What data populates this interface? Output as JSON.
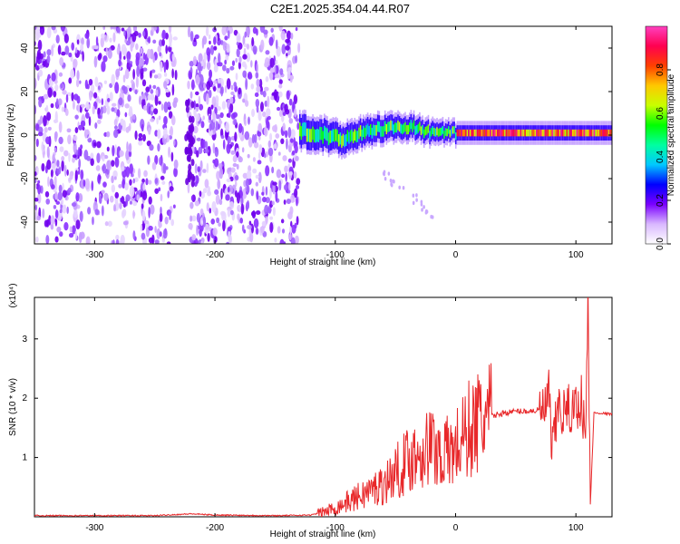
{
  "title": "C2E1.2025.354.04.44.R07",
  "chart_data": [
    {
      "type": "heatmap",
      "xlabel": "Height of straight line (km)",
      "ylabel": "Frequency (Hz)",
      "xlim": [
        -350,
        130
      ],
      "ylim": [
        -50,
        50
      ],
      "xticks": [
        -300,
        -200,
        -100,
        0,
        100
      ],
      "yticks": [
        -40,
        -20,
        0,
        20,
        40
      ],
      "colorbar": {
        "label": "Normalized spectral amplitude",
        "range": [
          0.0,
          1.0
        ],
        "ticks": [
          "0.0",
          "0.2",
          "0.4",
          "0.6",
          "0.8"
        ],
        "colormap": [
          "#ffffff",
          "#d9b8ff",
          "#7a00ff",
          "#0000ff",
          "#00c8ff",
          "#00ffa0",
          "#00ff00",
          "#c8ff00",
          "#ffc800",
          "#ff4000",
          "#ff0050",
          "#ff40c0"
        ]
      },
      "features": {
        "noise_band_x": [
          -350,
          -130
        ],
        "gap_x": [
          -232,
          -222
        ],
        "signal_start_x": -130,
        "ridge": [
          {
            "x": -130,
            "f": 2
          },
          {
            "x": -110,
            "f": 0
          },
          {
            "x": -95,
            "f": -2
          },
          {
            "x": -80,
            "f": 1
          },
          {
            "x": -60,
            "f": 3
          },
          {
            "x": -40,
            "f": 4
          },
          {
            "x": -20,
            "f": 1
          },
          {
            "x": 0,
            "f": 1
          },
          {
            "x": 20,
            "f": 1
          },
          {
            "x": 60,
            "f": 1
          },
          {
            "x": 100,
            "f": 1
          },
          {
            "x": 130,
            "f": 1
          }
        ]
      }
    },
    {
      "type": "line",
      "xlabel": "Height of straight line (km)",
      "ylabel": "SNR (10 * v/v)",
      "scale_label": "(x10⁴)",
      "xlim": [
        -350,
        130
      ],
      "ylim": [
        0,
        3.7
      ],
      "xticks": [
        -300,
        -200,
        -100,
        0,
        100
      ],
      "yticks": [
        1,
        2,
        3
      ],
      "color": "#e8282a",
      "series": [
        {
          "x": [
            -350,
            -300,
            -250,
            -220,
            -200,
            -150,
            -120,
            -110,
            -100,
            -90,
            -80,
            -70,
            -60,
            -50,
            -40,
            -30,
            -20,
            -10,
            0,
            10,
            20,
            30,
            40,
            50,
            60,
            70,
            75,
            78,
            80,
            85,
            90,
            95,
            100,
            105,
            108,
            110,
            112,
            115,
            120,
            130
          ],
          "y": [
            0.02,
            0.02,
            0.02,
            0.05,
            0.03,
            0.02,
            0.03,
            0.08,
            0.15,
            0.25,
            0.35,
            0.45,
            0.55,
            0.75,
            0.95,
            1.1,
            1.2,
            1.05,
            1.15,
            1.45,
            1.6,
            1.7,
            1.75,
            1.78,
            1.78,
            1.8,
            1.8,
            2.1,
            1.0,
            1.85,
            1.75,
            1.8,
            1.85,
            2.0,
            1.2,
            3.7,
            0.2,
            1.75,
            1.75,
            1.73
          ]
        }
      ]
    }
  ]
}
